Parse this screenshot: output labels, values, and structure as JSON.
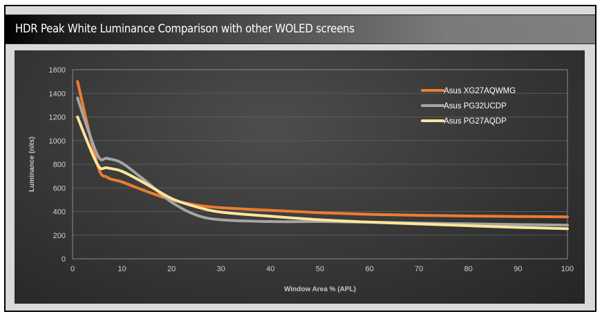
{
  "header": {
    "title": "HDR Peak White Luminance Comparison with other WOLED screens"
  },
  "chart_data": {
    "type": "line",
    "title": "HDR Peak White Luminance Comparison with other WOLED screens",
    "xlabel": "Window Area % (APL)",
    "ylabel": "Luminance (nits)",
    "xlim": [
      0,
      100
    ],
    "ylim": [
      0,
      1600
    ],
    "xticks": [
      "0",
      "10",
      "20",
      "30",
      "40",
      "50",
      "60",
      "70",
      "80",
      "90",
      "100"
    ],
    "yticks": [
      "0",
      "200",
      "400",
      "600",
      "800",
      "1000",
      "1200",
      "1400",
      "1600"
    ],
    "grid": true,
    "legend_position": "top-right",
    "x": [
      1,
      5,
      7,
      10,
      15,
      20,
      25,
      30,
      40,
      50,
      60,
      70,
      80,
      90,
      100
    ],
    "series": [
      {
        "name": "Asus XG27AQWMG",
        "color": "#ed7d31",
        "values": [
          1500,
          800,
          690,
          650,
          570,
          500,
          455,
          432,
          410,
          390,
          376,
          368,
          362,
          358,
          355
        ]
      },
      {
        "name": "Asus PG32UCDP",
        "color": "#a5a5a5",
        "values": [
          1360,
          880,
          850,
          810,
          650,
          480,
          370,
          330,
          315,
          315,
          310,
          302,
          296,
          290,
          285
        ]
      },
      {
        "name": "Asus PG27AQDP",
        "color": "#ffe699",
        "values": [
          1200,
          800,
          770,
          740,
          630,
          510,
          440,
          395,
          360,
          330,
          310,
          295,
          280,
          266,
          255
        ]
      }
    ]
  }
}
